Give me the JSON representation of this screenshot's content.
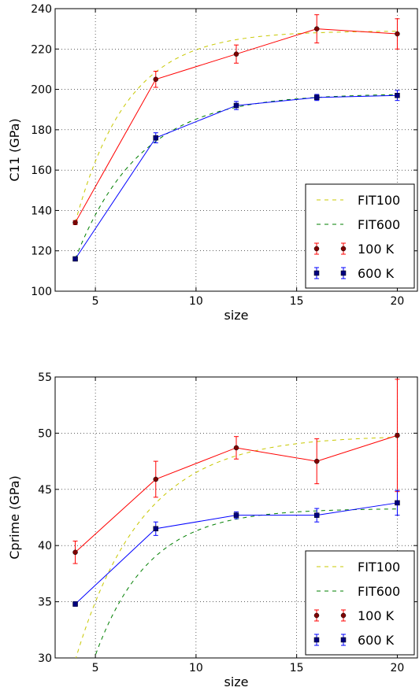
{
  "chart_data": [
    {
      "type": "line",
      "xlabel": "size",
      "ylabel": "C11 (GPa)",
      "xlim": [
        3,
        21
      ],
      "ylim": [
        100,
        240
      ],
      "xticks": [
        5,
        10,
        15,
        20
      ],
      "yticks": [
        100,
        120,
        140,
        160,
        180,
        200,
        220,
        240
      ],
      "grid": true,
      "legend_position": "lower-right",
      "x": [
        4,
        8,
        12,
        16,
        20
      ],
      "series": [
        {
          "name": "FIT100",
          "kind": "fit",
          "color": "#c8c800",
          "fit": {
            "a": 229,
            "b": 95,
            "k": 0.385
          }
        },
        {
          "name": "FIT600",
          "kind": "fit",
          "color": "#007f00",
          "fit": {
            "a": 198,
            "b": 82,
            "k": 0.31
          }
        },
        {
          "name": "100 K",
          "kind": "data",
          "color": "#ff0000",
          "marker": "circle",
          "values": [
            134,
            205,
            217.5,
            230,
            227.5
          ],
          "errors": [
            1,
            4,
            4.5,
            7,
            7.5
          ]
        },
        {
          "name": "600 K",
          "kind": "data",
          "color": "#0000ff",
          "marker": "square",
          "values": [
            116,
            176,
            192,
            196,
            197
          ],
          "errors": [
            1,
            2.5,
            2,
            1.5,
            2.5
          ]
        }
      ]
    },
    {
      "type": "line",
      "xlabel": "size",
      "ylabel": "Cprime (GPa)",
      "xlim": [
        3,
        21
      ],
      "ylim": [
        30,
        55
      ],
      "xticks": [
        5,
        10,
        15,
        20
      ],
      "yticks": [
        30,
        35,
        40,
        45,
        50,
        55
      ],
      "grid": true,
      "legend_position": "lower-right",
      "x": [
        4,
        8,
        12,
        16,
        20
      ],
      "series": [
        {
          "name": "FIT100",
          "kind": "fit",
          "color": "#c8c800",
          "fit": {
            "a": 49.8,
            "b": 20,
            "k": 0.3
          }
        },
        {
          "name": "FIT600",
          "kind": "fit",
          "color": "#007f00",
          "fit": {
            "a": 43.3,
            "b": 19,
            "k": 0.375
          }
        },
        {
          "name": "100 K",
          "kind": "data",
          "color": "#ff0000",
          "marker": "circle",
          "values": [
            39.4,
            45.9,
            48.7,
            47.5,
            49.8
          ],
          "errors": [
            1.0,
            1.6,
            1.0,
            2.0,
            5.0
          ]
        },
        {
          "name": "600 K",
          "kind": "data",
          "color": "#0000ff",
          "marker": "square",
          "values": [
            34.8,
            41.5,
            42.7,
            42.7,
            43.8
          ],
          "errors": [
            0.2,
            0.6,
            0.3,
            0.6,
            1.1
          ]
        }
      ]
    }
  ]
}
